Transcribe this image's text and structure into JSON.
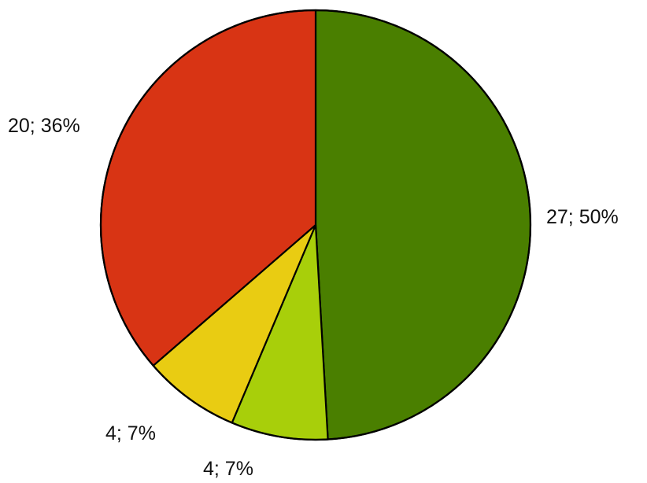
{
  "chart_data": {
    "type": "pie",
    "values": [
      27,
      4,
      4,
      20
    ],
    "labels": [
      "27; 50%",
      "4; 7%",
      "4; 7%",
      "20; 36%"
    ],
    "colors": [
      "#4a7f00",
      "#a8cf0a",
      "#e9cc12",
      "#d83414"
    ],
    "start": "12 o'clock",
    "direction": "clockwise",
    "legend": "none"
  }
}
